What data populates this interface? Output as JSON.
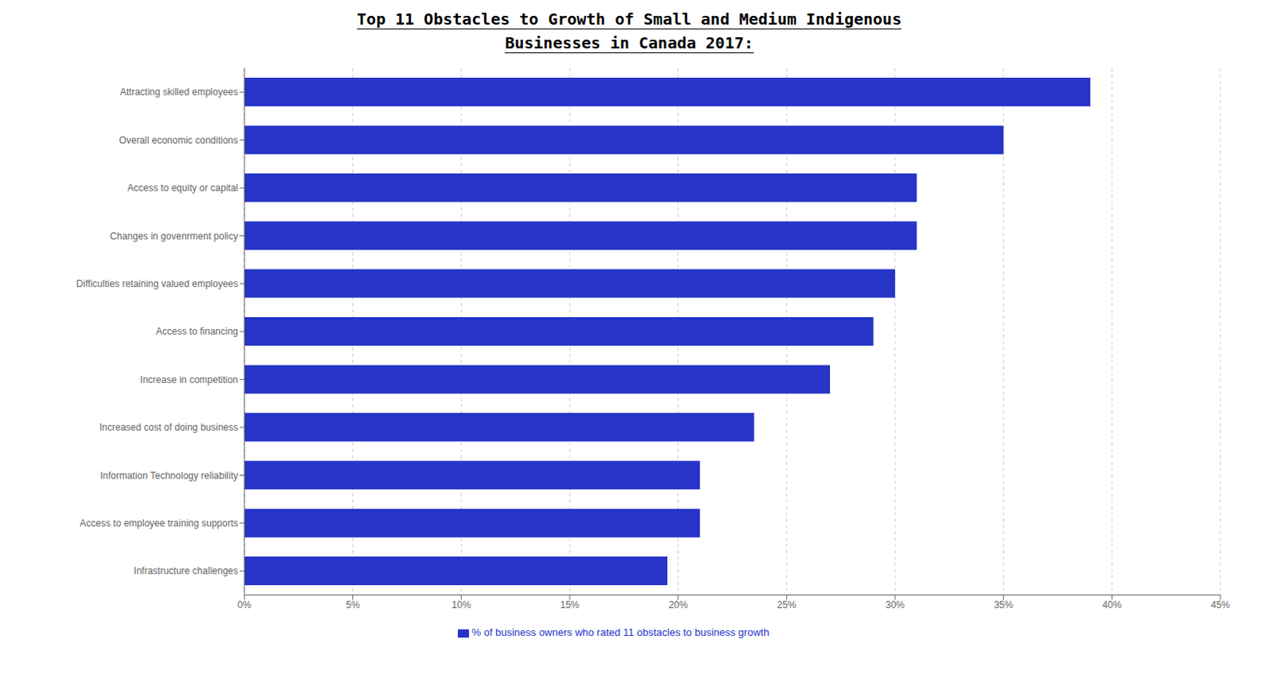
{
  "chart_data": {
    "type": "bar",
    "orientation": "horizontal",
    "title": "Top 11 Obstacles to Growth of Small and Medium Indigenous\nBusinesses in Canada 2017:",
    "categories": [
      "Attracting skilled employees",
      "Overall economic conditions",
      "Access to equity or capital",
      "Changes in govenrment policy",
      "Difficulties retaining valued employees",
      "Access to financing",
      "Increase in competition",
      "Increased cost of doing business",
      "Information Technology reliability",
      "Access to employee training supports",
      "Infrastructure challenges"
    ],
    "series": [
      {
        "name": "% of business owners who rated 11 obstacles to business growth",
        "color": "#2634c8",
        "values": [
          39,
          35,
          31,
          31,
          30,
          29,
          27,
          23.5,
          21,
          21,
          19.5
        ]
      }
    ],
    "xlim": [
      0,
      45
    ],
    "xticks": [
      {
        "value": 0,
        "label": "0%"
      },
      {
        "value": 5,
        "label": "5%"
      },
      {
        "value": 10,
        "label": "10%"
      },
      {
        "value": 15,
        "label": "15%"
      },
      {
        "value": 20,
        "label": "20%"
      },
      {
        "value": 25,
        "label": "25%"
      },
      {
        "value": 30,
        "label": "30%"
      },
      {
        "value": 35,
        "label": "35%"
      },
      {
        "value": 40,
        "label": "40%"
      },
      {
        "value": 45,
        "label": "45%"
      }
    ],
    "grid": true,
    "legend": "bottom"
  }
}
